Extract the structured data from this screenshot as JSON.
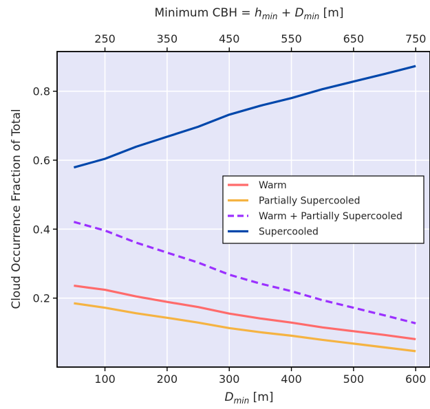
{
  "chart_data": {
    "type": "line",
    "title": "",
    "top_xlabel": "Minimum CBH = h_min + D_min [m]",
    "top_xlabel_parts": {
      "prefix": "Minimum CBH = ",
      "h": "h",
      "h_sub": "min",
      "plus": " + ",
      "d": "D",
      "d_sub": "min",
      "suffix": " [m]"
    },
    "xlabel": "D_min [m]",
    "xlabel_parts": {
      "d": "D",
      "d_sub": "min",
      "suffix": " [m]"
    },
    "ylabel": "Cloud Occurrence Fraction of Total",
    "xlim": [
      23,
      623
    ],
    "ylim": [
      0.0,
      0.915
    ],
    "x_ticks": [
      100,
      200,
      300,
      400,
      500,
      600
    ],
    "x_tick_labels": [
      "100",
      "200",
      "300",
      "400",
      "500",
      "600"
    ],
    "top_x_ticks": [
      250,
      350,
      450,
      550,
      650,
      750
    ],
    "top_x_tick_labels": [
      "250",
      "350",
      "450",
      "550",
      "650",
      "750"
    ],
    "top_offset": 150,
    "y_ticks": [
      0.2,
      0.4,
      0.6,
      0.8
    ],
    "y_tick_labels": [
      "0.2",
      "0.4",
      "0.6",
      "0.8"
    ],
    "grid": true,
    "legend_position": "center-right",
    "x": [
      50,
      100,
      150,
      200,
      250,
      300,
      350,
      400,
      450,
      500,
      550,
      600
    ],
    "series": [
      {
        "name": "Warm",
        "color": "#ff6b6b",
        "dash": "solid",
        "values": [
          0.236,
          0.224,
          0.205,
          0.189,
          0.174,
          0.155,
          0.141,
          0.129,
          0.115,
          0.104,
          0.093,
          0.081
        ]
      },
      {
        "name": "Partially Supercooled",
        "color": "#f5b342",
        "dash": "solid",
        "values": [
          0.185,
          0.172,
          0.156,
          0.143,
          0.129,
          0.113,
          0.101,
          0.091,
          0.079,
          0.068,
          0.057,
          0.046
        ]
      },
      {
        "name": "Warm + Partially Supercooled",
        "color": "#9b30ff",
        "dash": "dashed",
        "values": [
          0.421,
          0.396,
          0.361,
          0.332,
          0.303,
          0.268,
          0.242,
          0.22,
          0.194,
          0.172,
          0.15,
          0.127
        ]
      },
      {
        "name": "Supercooled",
        "color": "#0047ab",
        "dash": "solid",
        "values": [
          0.579,
          0.604,
          0.639,
          0.668,
          0.697,
          0.732,
          0.758,
          0.78,
          0.806,
          0.828,
          0.85,
          0.873
        ]
      }
    ],
    "colors": {
      "plot_background": "#e5e6f8",
      "grid": "#ffffff",
      "frame": "#000000"
    }
  }
}
